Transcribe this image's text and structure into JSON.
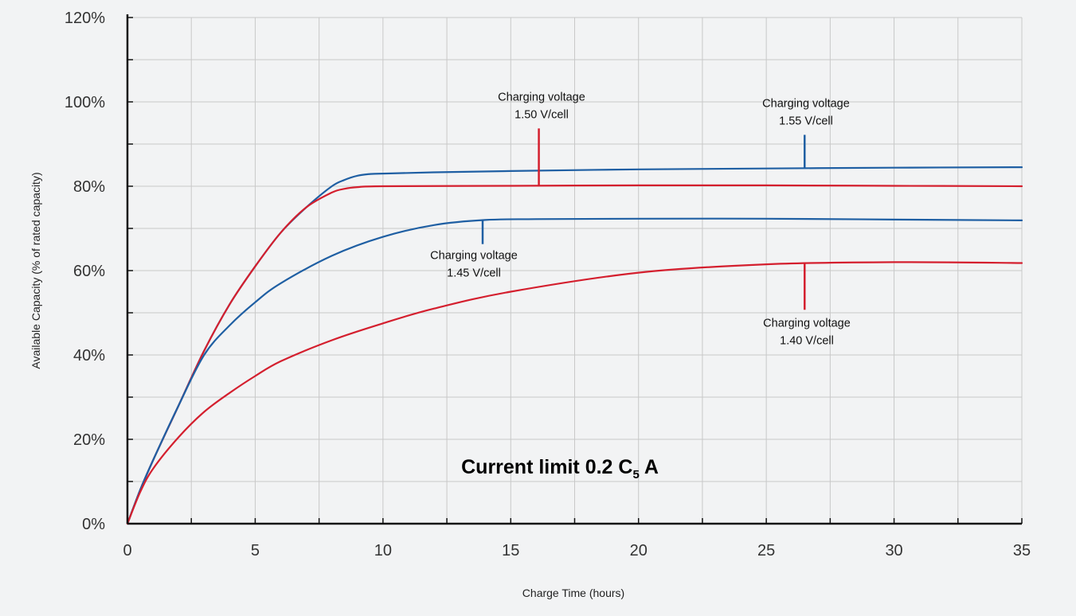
{
  "colors": {
    "blue": "#1f5fa3",
    "red": "#d41f2e",
    "grid": "#c8c8c8",
    "axis": "#111111"
  },
  "chart_data": {
    "type": "line",
    "xlabel": "Charge Time (hours)",
    "ylabel": "Available Capacity (% of rated capacity)",
    "xlim": [
      0,
      35
    ],
    "ylim": [
      0,
      120
    ],
    "x_ticks": [
      "0",
      "5",
      "10",
      "15",
      "20",
      "25",
      "30",
      "35"
    ],
    "y_ticks": [
      "0%",
      "20%",
      "40%",
      "60%",
      "80%",
      "100%",
      "120%"
    ],
    "grid": true,
    "series": [
      {
        "key": "v155",
        "color": "blue",
        "x": [
          0,
          0.5,
          1,
          2,
          3,
          4,
          5,
          6,
          7,
          8,
          8.5,
          9,
          9.5,
          10,
          12,
          15,
          20,
          25,
          30,
          35
        ],
        "y": [
          0,
          8,
          15,
          28,
          41,
          52,
          61,
          69,
          75,
          80,
          81.5,
          82.5,
          82.9,
          83,
          83.3,
          83.6,
          84,
          84.2,
          84.4,
          84.5
        ]
      },
      {
        "key": "v150",
        "color": "red",
        "x": [
          0,
          0.5,
          1,
          2,
          3,
          4,
          5,
          6,
          7,
          8,
          8.5,
          9,
          10,
          15,
          20,
          25,
          30,
          35
        ],
        "y": [
          0,
          8,
          15,
          28,
          41,
          52,
          61,
          69,
          75,
          78.5,
          79.4,
          79.8,
          80,
          80.1,
          80.2,
          80.2,
          80.1,
          80
        ]
      },
      {
        "key": "v145",
        "color": "blue",
        "x": [
          0,
          0.5,
          1,
          2,
          3,
          4,
          5,
          6,
          8,
          10,
          12,
          14,
          16,
          20,
          25,
          30,
          35
        ],
        "y": [
          0,
          8,
          15,
          28,
          40,
          47,
          52.5,
          57,
          63.5,
          68,
          70.8,
          72,
          72.2,
          72.3,
          72.3,
          72.1,
          71.9
        ]
      },
      {
        "key": "v140",
        "color": "red",
        "x": [
          0,
          0.5,
          1,
          2,
          3,
          4,
          5,
          6,
          8,
          10,
          12,
          15,
          20,
          25,
          30,
          35
        ],
        "y": [
          0,
          7.5,
          13,
          20.5,
          26.5,
          31,
          35,
          38.5,
          43.5,
          47.5,
          51,
          55,
          59.5,
          61.5,
          62,
          61.8
        ]
      }
    ],
    "annotations": [
      {
        "series": "v150",
        "line1": "Charging voltage",
        "line2": "1.50 V/cell"
      },
      {
        "series": "v155",
        "line1": "Charging voltage",
        "line2": "1.55 V/cell"
      },
      {
        "series": "v145",
        "line1": "Charging voltage",
        "line2": "1.45 V/cell"
      },
      {
        "series": "v140",
        "line1": "Charging voltage",
        "line2": "1.40 V/cell"
      }
    ],
    "current_limit": {
      "text": "Current limit 0.2 C",
      "subscript": "5",
      "suffix": " A"
    }
  }
}
